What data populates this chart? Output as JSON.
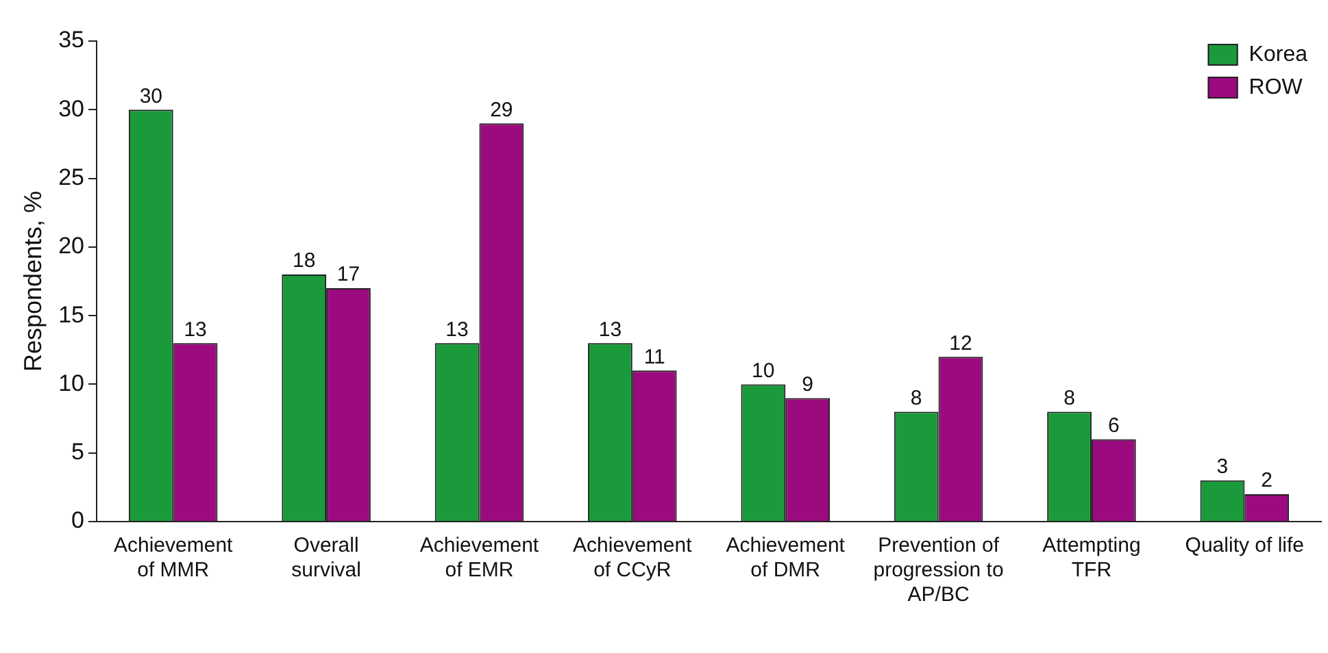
{
  "chart_data": {
    "type": "bar",
    "ylabel": "Respondents, %",
    "categories": [
      "Achievement of MMR",
      "Overall survival",
      "Achievement of EMR",
      "Achievement of CCyR",
      "Achievement of DMR",
      "Prevention of progression to AP/BC",
      "Attempting TFR",
      "Quality of life"
    ],
    "series": [
      {
        "name": "Korea",
        "color": "#1b9a3c",
        "values": [
          30,
          18,
          13,
          13,
          10,
          8,
          8,
          3
        ]
      },
      {
        "name": "ROW",
        "color": "#9b0b7f",
        "values": [
          13,
          17,
          29,
          11,
          9,
          12,
          6,
          2
        ]
      }
    ],
    "ylim": [
      0,
      35
    ],
    "yticks": [
      0,
      5,
      10,
      15,
      20,
      25,
      30,
      35
    ],
    "grid": false,
    "legend": "top right",
    "data_labels": true
  }
}
